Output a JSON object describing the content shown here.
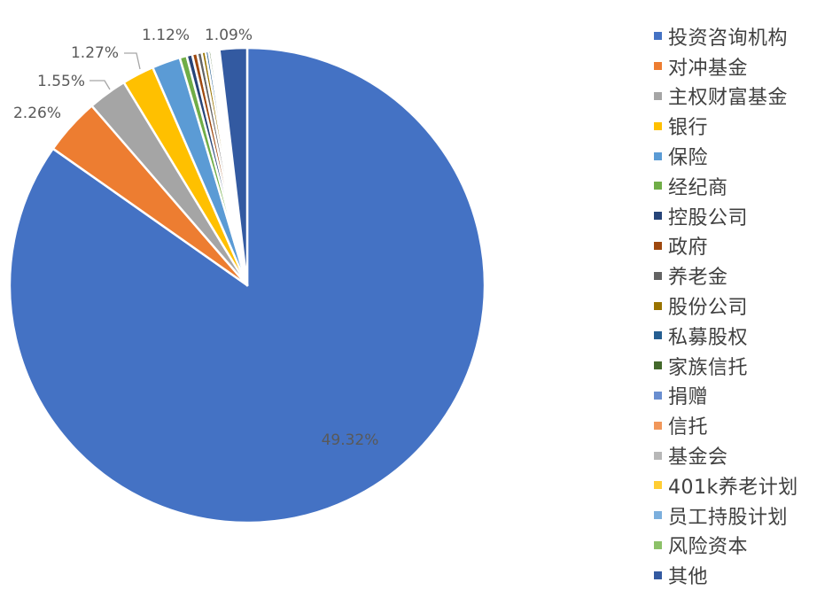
{
  "chart_data": {
    "type": "pie",
    "title": "",
    "categories": [
      "投资咨询机构",
      "对冲基金",
      "主权财富基金",
      "银行",
      "保险",
      "经纪商",
      "控股公司",
      "政府",
      "养老金",
      "股份公司",
      "私募股权",
      "家族信托",
      "捐赠",
      "信托",
      "基金会",
      "401k养老计划",
      "员工持股计划",
      "风险资本",
      "其他"
    ],
    "values": [
      49.32,
      2.26,
      1.55,
      1.27,
      1.12,
      0.28,
      0.22,
      0.2,
      0.18,
      0.15,
      0.12,
      0.1,
      0.08,
      0.07,
      0.06,
      0.05,
      0.04,
      0.03,
      1.09
    ],
    "data_labels": [
      "49.32%",
      "2.26%",
      "1.55%",
      "1.27%",
      "1.12%",
      "",
      "",
      "",
      "",
      "",
      "",
      "",
      "",
      "",
      "",
      "",
      "",
      "",
      "1.09%"
    ],
    "colors": [
      "#4472C4",
      "#ED7D31",
      "#A5A5A5",
      "#FFC000",
      "#5B9BD5",
      "#70AD47",
      "#264478",
      "#9E480E",
      "#636363",
      "#997300",
      "#255E91",
      "#43682B",
      "#698ED0",
      "#F1975A",
      "#B7B7B7",
      "#FFCD33",
      "#7CAFDD",
      "#8CC168",
      "#335AA1"
    ],
    "legend_position": "right"
  }
}
